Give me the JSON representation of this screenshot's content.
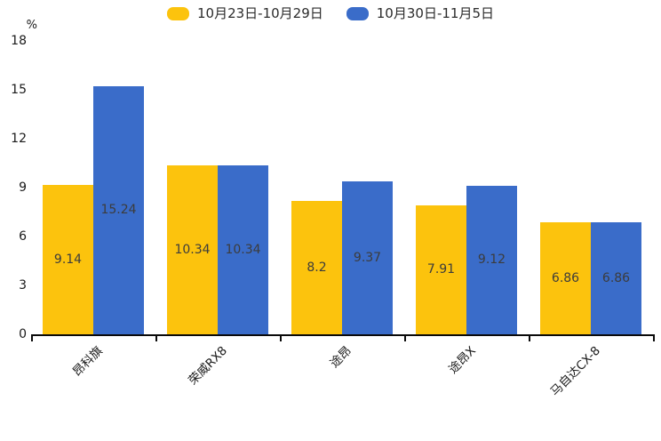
{
  "chart_data": {
    "type": "bar",
    "title": "",
    "unit_label": "%",
    "categories": [
      "昂科旗",
      "荣威RX8",
      "途昂",
      "途昂X",
      "马自达CX-8"
    ],
    "series": [
      {
        "name": "10月23日-10月29日",
        "color": "#FCC30D",
        "values": [
          9.14,
          10.34,
          8.2,
          7.91,
          6.86
        ]
      },
      {
        "name": "10月30日-11月5日",
        "color": "#3A6CC9",
        "values": [
          15.24,
          10.34,
          9.37,
          9.12,
          6.86
        ]
      }
    ],
    "y_axis": {
      "min": 0,
      "max": 18,
      "tick_interval": 3,
      "ticks": [
        0,
        3,
        6,
        9,
        12,
        15,
        18
      ]
    },
    "x_tick_label_rotation_deg": 45,
    "grid": false,
    "legend_position": "top-center",
    "value_labels": "inside-center",
    "axis_line_color": "#0a0a0a",
    "value_label_color": "#3c3c3c",
    "tick_label_color": "#1a1a1a"
  }
}
